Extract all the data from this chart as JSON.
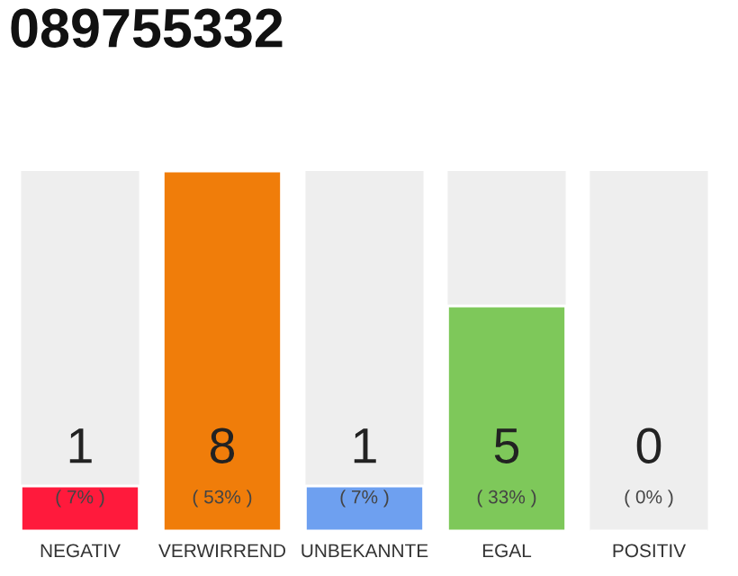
{
  "chart_data": {
    "type": "bar",
    "title": "089755332",
    "categories": [
      "NEGATIV",
      "VERWIRREND",
      "UNBEKANNTE",
      "EGAL",
      "POSITIV"
    ],
    "values": [
      1,
      8,
      1,
      5,
      0
    ],
    "colors": [
      "#ff1a3c",
      "#f07d0a",
      "#6ea0f0",
      "#7ec85a",
      null
    ],
    "data_labels": true,
    "ylim": [
      0,
      8
    ],
    "tick_labels": "x",
    "grid": false,
    "legend": false,
    "annotations": [
      {
        "text": "( 7% )",
        "x": "NEGATIV",
        "y": 0
      },
      {
        "text": "( 53% )",
        "x": "VERWIRREND",
        "y": 0
      },
      {
        "text": "( 7% )",
        "x": "UNBEKANNTE",
        "y": 0
      },
      {
        "text": "( 33% )",
        "x": "EGAL",
        "y": 0
      },
      {
        "text": "( 0% )",
        "x": "POSITIV",
        "y": 0
      }
    ]
  }
}
